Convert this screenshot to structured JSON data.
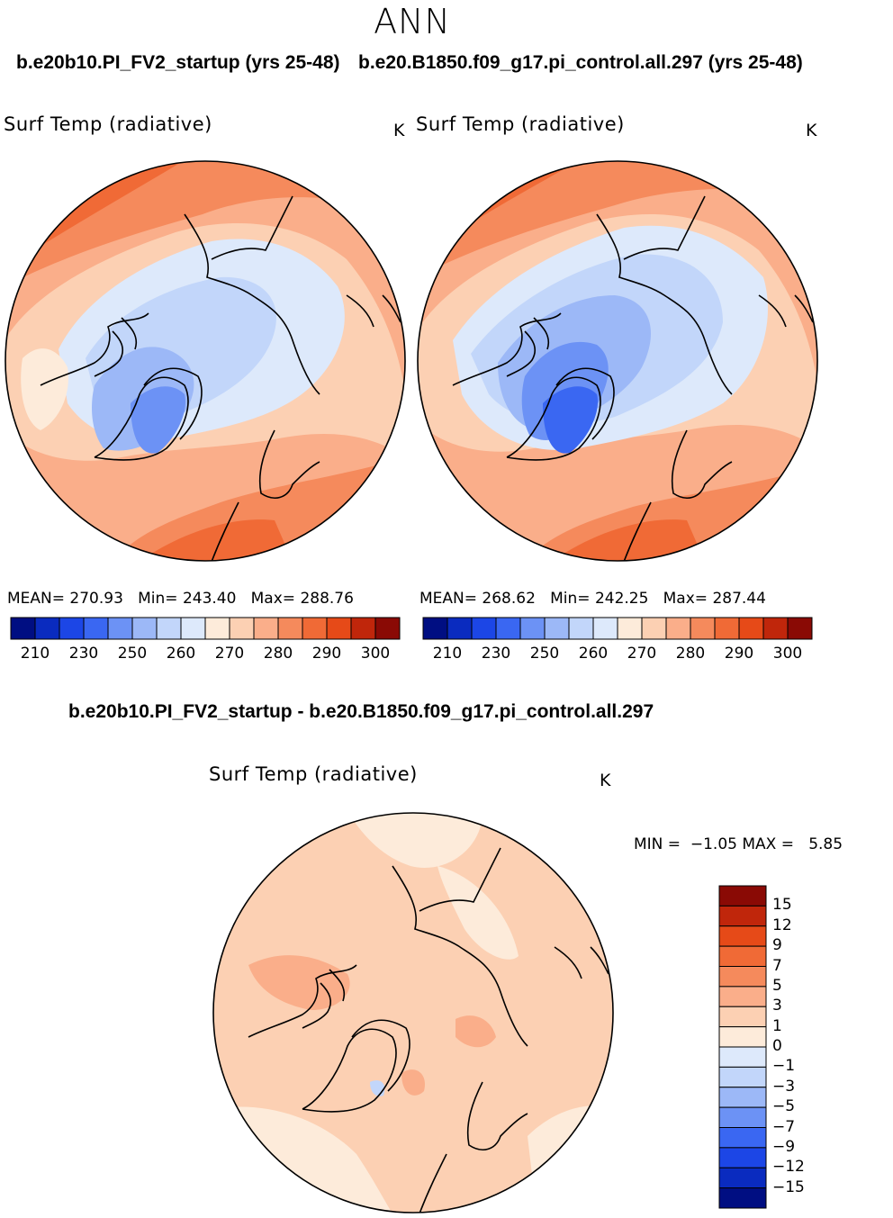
{
  "season": "ANN",
  "colors": {
    "abs_scale": [
      "#000e82",
      "#0a2bbf",
      "#1c46e6",
      "#3a67f2",
      "#6c92f5",
      "#9cb8f7",
      "#c2d6fa",
      "#dde9fb",
      "#fdebda",
      "#fcd0b3",
      "#faae8a",
      "#f58a5c",
      "#f06a36",
      "#e64a18",
      "#c0260b",
      "#8a0a05"
    ],
    "diff_scale": [
      "#000e82",
      "#0a2bbf",
      "#1c46e6",
      "#3a67f2",
      "#6c92f5",
      "#9cb8f7",
      "#c2d6fa",
      "#dde9fb",
      "#fdebda",
      "#fcd0b3",
      "#faae8a",
      "#f58a5c",
      "#f06a36",
      "#e64a18",
      "#c0260b",
      "#8a0a05"
    ],
    "land_outline": "#000000"
  },
  "panels": [
    {
      "case_title": "b.e20b10.PI_FV2_startup (yrs 25-48)",
      "variable": "Surf Temp (radiative)",
      "units": "K",
      "mean_label": "MEAN=",
      "mean": "270.93",
      "min_label": "Min=",
      "min": "243.40",
      "max_label": "Max=",
      "max": "288.76",
      "colorbar_ticks": [
        "210",
        "230",
        "250",
        "260",
        "270",
        "280",
        "290",
        "300"
      ]
    },
    {
      "case_title": "b.e20.B1850.f09_g17.pi_control.all.297 (yrs 25-48)",
      "variable": "Surf Temp (radiative)",
      "units": "K",
      "mean_label": "MEAN=",
      "mean": "268.62",
      "min_label": "Min=",
      "min": "242.25",
      "max_label": "Max=",
      "max": "287.44",
      "colorbar_ticks": [
        "210",
        "230",
        "250",
        "260",
        "270",
        "280",
        "290",
        "300"
      ]
    }
  ],
  "difference": {
    "title": "b.e20b10.PI_FV2_startup - b.e20.B1850.f09_g17.pi_control.all.297",
    "variable": "Surf Temp (radiative)",
    "units": "K",
    "min_label": "MIN =",
    "min": "−1.05",
    "max_label": "MAX =",
    "max": "5.85",
    "colorbar_ticks": [
      "15",
      "12",
      "9",
      "7",
      "5",
      "3",
      "1",
      "0",
      "−1",
      "−3",
      "−5",
      "−7",
      "−9",
      "−12",
      "−15"
    ]
  }
}
